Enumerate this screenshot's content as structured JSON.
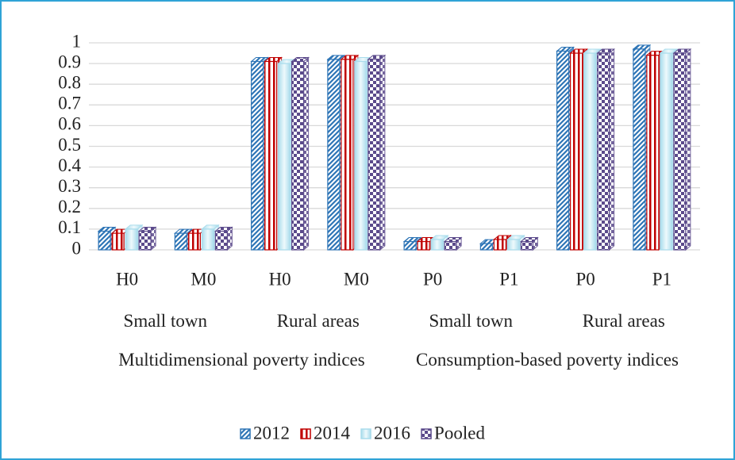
{
  "chart_data": {
    "type": "bar",
    "categories": [
      "H0",
      "M0",
      "H0",
      "M0",
      "P0",
      "P1",
      "P0",
      "P1"
    ],
    "category_groups": [
      [
        "Small town",
        null,
        "Rural areas",
        null,
        "Small town",
        null,
        "Rural areas",
        null
      ],
      [
        "Multidimensional poverty indices",
        null,
        null,
        null,
        "Consumption-based poverty indices",
        null,
        null,
        null
      ]
    ],
    "series": [
      {
        "name": "2012",
        "color": "#2e75b6",
        "values": [
          0.09,
          0.08,
          0.91,
          0.92,
          0.04,
          0.03,
          0.96,
          0.97
        ]
      },
      {
        "name": "2014",
        "color": "#c00000",
        "values": [
          0.08,
          0.08,
          0.91,
          0.92,
          0.04,
          0.05,
          0.95,
          0.94
        ]
      },
      {
        "name": "2016",
        "color": "#a9dcec",
        "values": [
          0.1,
          0.1,
          0.9,
          0.91,
          0.05,
          0.05,
          0.95,
          0.95
        ]
      },
      {
        "name": "Pooled",
        "color": "#5b4a8b",
        "values": [
          0.09,
          0.09,
          0.91,
          0.92,
          0.04,
          0.04,
          0.95,
          0.95
        ]
      }
    ],
    "ylim": [
      0,
      1
    ],
    "yticks": [
      0,
      0.1,
      0.2,
      0.3,
      0.4,
      0.5,
      0.6,
      0.7,
      0.8,
      0.9,
      1
    ],
    "grid": true,
    "legend": "bottom"
  }
}
